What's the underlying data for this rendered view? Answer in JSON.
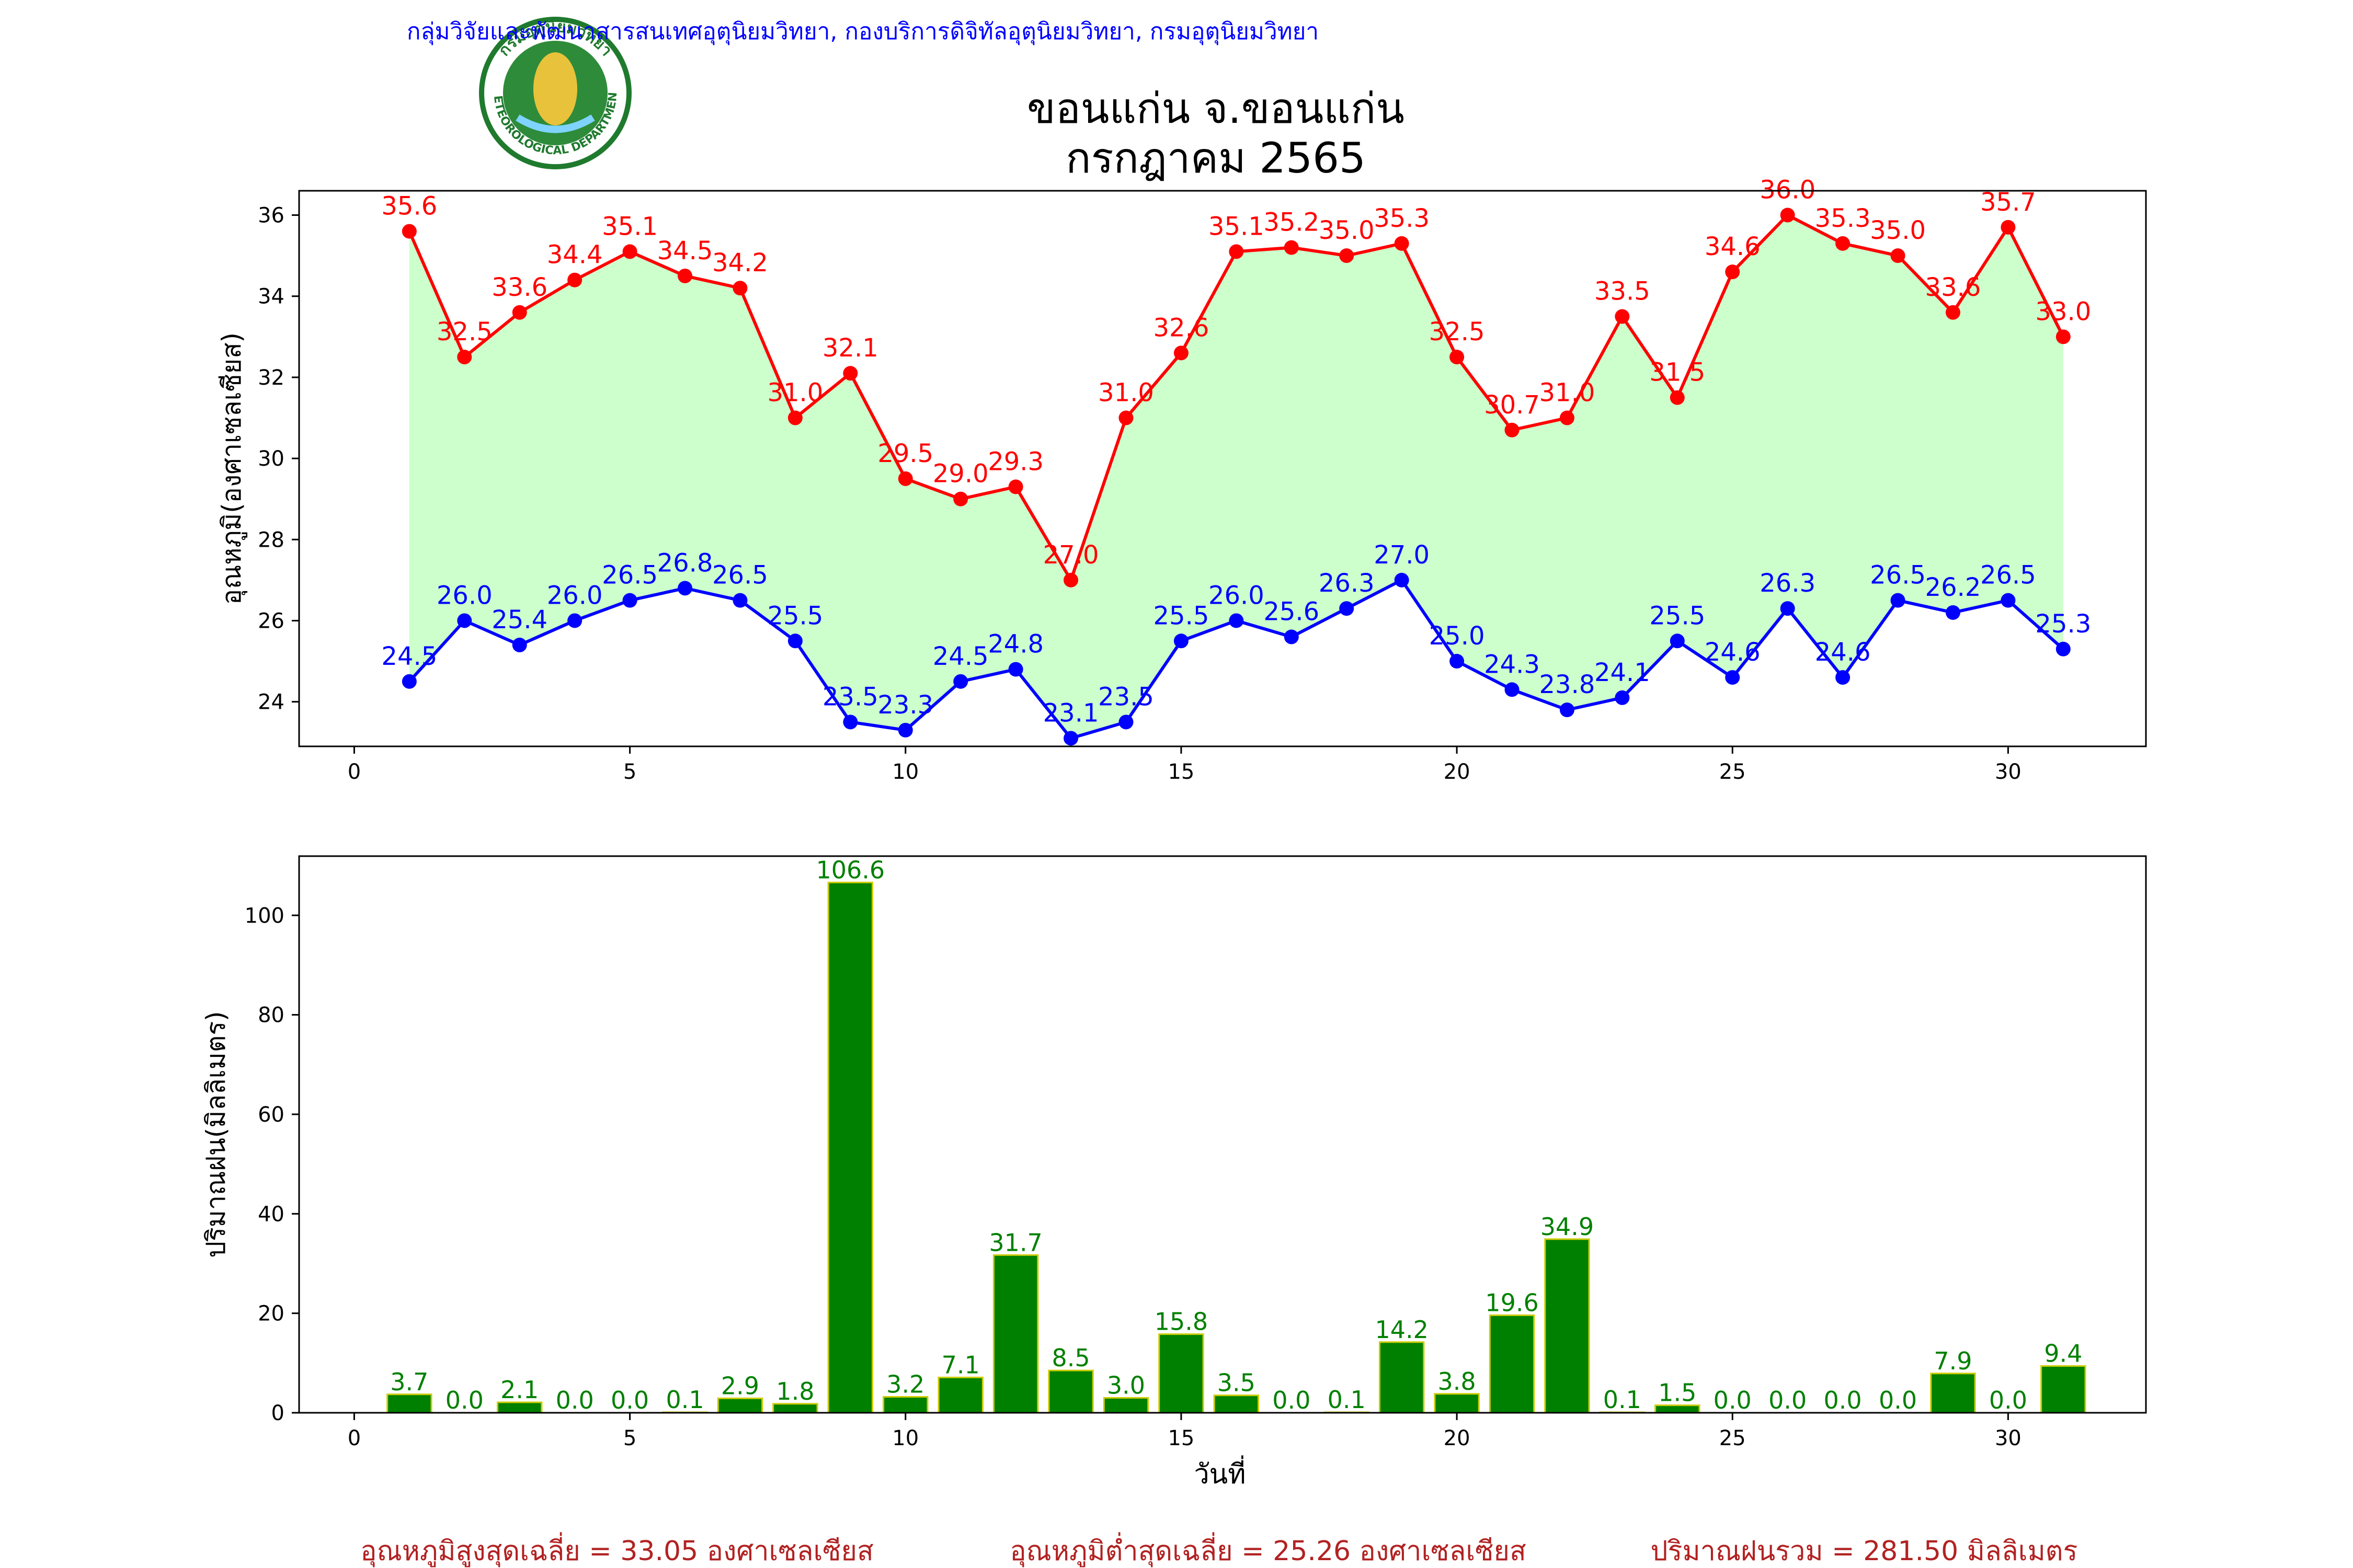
{
  "header": {
    "org_line": "กลุ่มวิจัยและพัฒนาสารสนเทศอุตุนิยมวิทยา, กองบริการดิจิทัลอุตุนิยมวิทยา, กรมอุตุนิยมวิทยา",
    "title_line1": "ขอนแก่น จ.ขอนแก่น",
    "title_line2": "กรกฎาคม 2565",
    "logo_text_top": "กรมอุตุนิยมวิทยา",
    "logo_text_bottom": "METEOROLOGICAL DEPARTMENT"
  },
  "colors": {
    "max_temp": "#ff0000",
    "min_temp": "#0000ff",
    "fill": "#ccffcc",
    "rain_bar": "#008000",
    "rain_edge": "#cccc00",
    "rain_label": "#008000",
    "summary": "#b22222",
    "org_line": "#0000ff"
  },
  "chart_data": [
    {
      "type": "line",
      "ylabel": "อุณหภูมิ(องศาเซลเซียส)",
      "xlim": [
        -1,
        32.5
      ],
      "ylim": [
        22.9,
        36.6
      ],
      "xticks": [
        0,
        5,
        10,
        15,
        20,
        25,
        30
      ],
      "yticks": [
        24,
        26,
        28,
        30,
        32,
        34,
        36
      ],
      "x": [
        1,
        2,
        3,
        4,
        5,
        6,
        7,
        8,
        9,
        10,
        11,
        12,
        13,
        14,
        15,
        16,
        17,
        18,
        19,
        20,
        21,
        22,
        23,
        24,
        25,
        26,
        27,
        28,
        29,
        30,
        31
      ],
      "series": [
        {
          "key": "max",
          "values": [
            35.6,
            32.5,
            33.6,
            34.4,
            35.1,
            34.5,
            34.2,
            31.0,
            32.1,
            29.5,
            29.0,
            29.3,
            27.0,
            31.0,
            32.6,
            35.1,
            35.2,
            35.0,
            35.3,
            32.5,
            30.7,
            31.0,
            33.5,
            31.5,
            34.6,
            36.0,
            35.3,
            35.0,
            33.6,
            35.7,
            33.0
          ]
        },
        {
          "key": "min",
          "values": [
            24.5,
            26.0,
            25.4,
            26.0,
            26.5,
            26.8,
            26.5,
            25.5,
            23.5,
            23.3,
            24.5,
            24.8,
            23.1,
            23.5,
            25.5,
            26.0,
            25.6,
            26.3,
            27.0,
            25.0,
            24.3,
            23.8,
            24.1,
            25.5,
            24.6,
            26.3,
            24.6,
            26.5,
            26.2,
            26.5,
            25.3
          ]
        }
      ]
    },
    {
      "type": "bar",
      "ylabel": "ปริมาณฝน(มิลลิเมตร)",
      "xlabel": "วันที่",
      "xlim": [
        -1,
        32.5
      ],
      "ylim": [
        0,
        111.9
      ],
      "xticks": [
        0,
        5,
        10,
        15,
        20,
        25,
        30
      ],
      "yticks": [
        0,
        20,
        40,
        60,
        80,
        100
      ],
      "x": [
        1,
        2,
        3,
        4,
        5,
        6,
        7,
        8,
        9,
        10,
        11,
        12,
        13,
        14,
        15,
        16,
        17,
        18,
        19,
        20,
        21,
        22,
        23,
        24,
        25,
        26,
        27,
        28,
        29,
        30,
        31
      ],
      "values": [
        3.7,
        0.0,
        2.1,
        0.0,
        0.0,
        0.1,
        2.9,
        1.8,
        106.6,
        3.2,
        7.1,
        31.7,
        8.5,
        3.0,
        15.8,
        3.5,
        0.0,
        0.1,
        14.2,
        3.8,
        19.6,
        34.9,
        0.1,
        1.5,
        0.0,
        0.0,
        0.0,
        0.0,
        7.9,
        0.0,
        9.4
      ]
    }
  ],
  "summary": {
    "avg_max": "อุณหภูมิสูงสุดเฉลี่ย = 33.05 องศาเซลเซียส",
    "avg_min": "อุณหภูมิต่ำสุดเฉลี่ย = 25.26 องศาเซลเซียส",
    "total_rain": "ปริมาณฝนรวม = 281.50 มิลลิเมตร"
  }
}
